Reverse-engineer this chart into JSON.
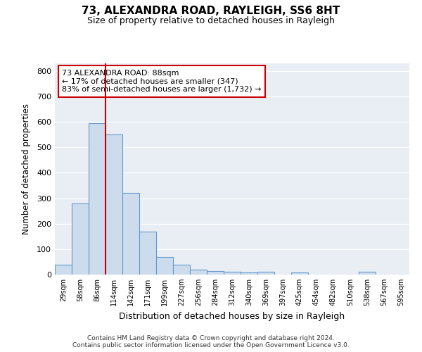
{
  "title1": "73, ALEXANDRA ROAD, RAYLEIGH, SS6 8HT",
  "title2": "Size of property relative to detached houses in Rayleigh",
  "xlabel": "Distribution of detached houses by size in Rayleigh",
  "ylabel": "Number of detached properties",
  "categories": [
    "29sqm",
    "58sqm",
    "86sqm",
    "114sqm",
    "142sqm",
    "171sqm",
    "199sqm",
    "227sqm",
    "256sqm",
    "284sqm",
    "312sqm",
    "340sqm",
    "369sqm",
    "397sqm",
    "425sqm",
    "454sqm",
    "482sqm",
    "510sqm",
    "538sqm",
    "567sqm",
    "595sqm"
  ],
  "values": [
    40,
    280,
    595,
    550,
    320,
    170,
    68,
    40,
    20,
    15,
    10,
    8,
    10,
    0,
    8,
    0,
    0,
    0,
    10,
    0,
    0
  ],
  "bar_color": "#ccdcec",
  "bar_edge_color": "#6699cc",
  "red_line_color": "#cc0000",
  "annotation_line1": "73 ALEXANDRA ROAD: 88sqm",
  "annotation_line2": "← 17% of detached houses are smaller (347)",
  "annotation_line3": "83% of semi-detached houses are larger (1,732) →",
  "annotation_box_facecolor": "#ffffff",
  "annotation_box_edgecolor": "#cc0000",
  "ylim": [
    0,
    830
  ],
  "yticks": [
    0,
    100,
    200,
    300,
    400,
    500,
    600,
    700,
    800
  ],
  "plot_bg_color": "#e8eef4",
  "footer1": "Contains HM Land Registry data © Crown copyright and database right 2024.",
  "footer2": "Contains public sector information licensed under the Open Government Licence v3.0."
}
